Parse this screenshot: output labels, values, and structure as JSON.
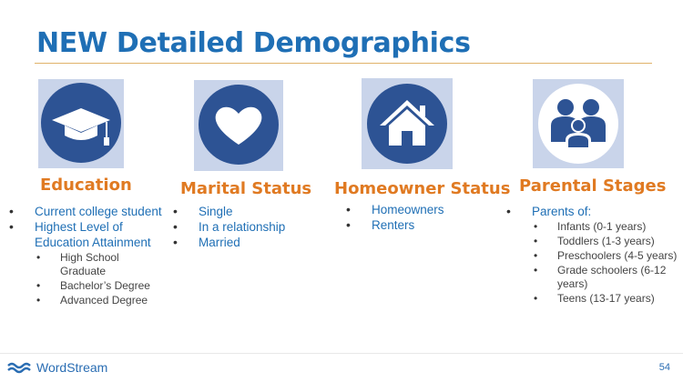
{
  "slide": {
    "title": "NEW Detailed Demographics",
    "page_number": "54",
    "brand": "WordStream"
  },
  "columns": [
    {
      "heading": "Education",
      "icon": "graduation-cap-icon",
      "items": [
        {
          "text": "Current college student",
          "sub": []
        },
        {
          "text": "Highest Level of Education Attainment",
          "sub": [
            "High School Graduate",
            "Bachelor’s Degree",
            "Advanced Degree"
          ]
        }
      ]
    },
    {
      "heading": "Marital Status",
      "icon": "heart-icon",
      "items": [
        {
          "text": "Single",
          "sub": []
        },
        {
          "text": "In a relationship",
          "sub": []
        },
        {
          "text": "Married",
          "sub": []
        }
      ]
    },
    {
      "heading": "Homeowner Status",
      "icon": "house-icon",
      "items": [
        {
          "text": "Homeowners",
          "sub": []
        },
        {
          "text": "Renters",
          "sub": []
        }
      ]
    },
    {
      "heading": "Parental Stages",
      "icon": "family-icon",
      "items": [
        {
          "text": "Parents of:",
          "sub": [
            "Infants (0-1 years)",
            "Toddlers (1-3 years)",
            "Preschoolers (4-5 years)",
            "Grade schoolers (6-12 years)",
            "Teens (13-17 years)"
          ]
        }
      ]
    }
  ],
  "colors": {
    "title": "#1f6fb5",
    "heading": "#e07a22",
    "icon_circle": "#2d5394",
    "icon_box": "#c9d4ea",
    "accent_rule": "#e0b26a"
  }
}
